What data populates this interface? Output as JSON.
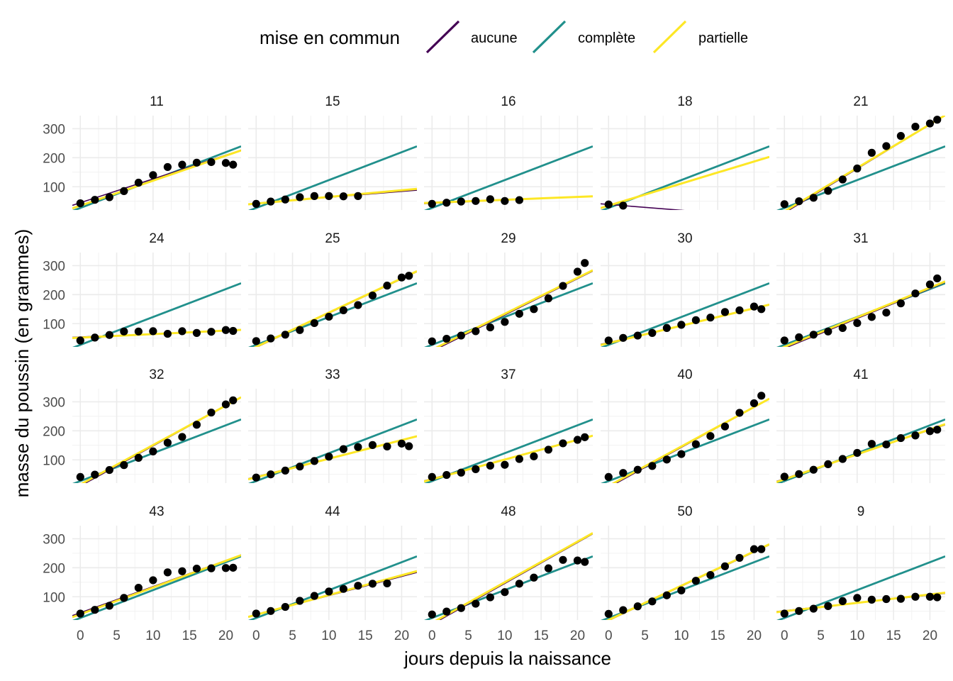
{
  "chart_data": {
    "type": "scatter",
    "facet_by": "Chick",
    "xlabel": "jours depuis la naissance",
    "ylabel": "masse du poussin (en grammes)",
    "xlim": [
      -1.1,
      22.1
    ],
    "ylim": [
      20,
      345
    ],
    "xticks": [
      0,
      5,
      10,
      15,
      20
    ],
    "yticks": [
      100,
      200,
      300
    ],
    "grid": true,
    "legend": {
      "title": "mise en commun",
      "position": "top",
      "items": [
        {
          "key": "aucune",
          "label": "aucune",
          "color": "#440154"
        },
        {
          "key": "complete",
          "label": "complète",
          "color": "#21908C"
        },
        {
          "key": "partielle",
          "label": "partielle",
          "color": "#FDE725"
        }
      ]
    },
    "point_color": "#000000",
    "panels": [
      {
        "label": "11",
        "x": [
          0,
          2,
          4,
          6,
          8,
          10,
          12,
          14,
          16,
          18,
          20,
          21
        ],
        "y": [
          43,
          55,
          64,
          85,
          114,
          140,
          168,
          176,
          183,
          185,
          182,
          176
        ],
        "fits": {
          "aucune": [
            45,
            8.2
          ],
          "complete": [
            27,
            9.6
          ],
          "partielle": [
            35,
            8.6
          ]
        }
      },
      {
        "label": "15",
        "x": [
          0,
          2,
          4,
          6,
          8,
          10,
          12,
          14
        ],
        "y": [
          41,
          49,
          56,
          64,
          68,
          68,
          67,
          68
        ],
        "fits": {
          "aucune": [
            43,
            2.05
          ],
          "complete": [
            27,
            9.6
          ],
          "partielle": [
            42,
            2.3
          ]
        }
      },
      {
        "label": "16",
        "x": [
          0,
          2,
          4,
          6,
          8,
          10,
          12
        ],
        "y": [
          41,
          45,
          49,
          51,
          57,
          51,
          54
        ],
        "fits": {
          "aucune": [
            43,
            1.1
          ],
          "complete": [
            27,
            9.6
          ],
          "partielle": [
            45,
            1.0
          ]
        }
      },
      {
        "label": "18",
        "x": [
          0,
          2
        ],
        "y": [
          39,
          35
        ],
        "fits": {
          "aucune": [
            39,
            -2.0
          ],
          "complete": [
            27,
            9.6
          ],
          "partielle": [
            35,
            7.6
          ]
        }
      },
      {
        "label": "21",
        "x": [
          0,
          2,
          4,
          6,
          8,
          10,
          12,
          14,
          16,
          18,
          20,
          21
        ],
        "y": [
          40,
          50,
          62,
          86,
          125,
          163,
          217,
          240,
          275,
          307,
          318,
          331
        ],
        "fits": {
          "aucune": [
            10,
            15.2
          ],
          "complete": [
            27,
            9.6
          ],
          "partielle": [
            15,
            15.0
          ]
        }
      },
      {
        "label": "24",
        "x": [
          0,
          2,
          4,
          6,
          8,
          10,
          12,
          14,
          16,
          18,
          20,
          21
        ],
        "y": [
          42,
          52,
          61,
          73,
          73,
          74,
          65,
          74,
          68,
          72,
          78,
          75
        ],
        "fits": {
          "aucune": [
            54,
            1.05
          ],
          "complete": [
            27,
            9.6
          ],
          "partielle": [
            52,
            1.2
          ]
        }
      },
      {
        "label": "25",
        "x": [
          0,
          2,
          4,
          6,
          8,
          10,
          12,
          14,
          16,
          18,
          20,
          21
        ],
        "y": [
          40,
          49,
          62,
          78,
          102,
          124,
          146,
          164,
          197,
          231,
          259,
          265
        ],
        "fits": {
          "aucune": [
            18,
            11.8
          ],
          "complete": [
            27,
            9.6
          ],
          "partielle": [
            20,
            11.8
          ]
        }
      },
      {
        "label": "29",
        "x": [
          0,
          2,
          4,
          6,
          8,
          10,
          12,
          14,
          16,
          18,
          20,
          21
        ],
        "y": [
          39,
          48,
          59,
          74,
          87,
          106,
          134,
          150,
          187,
          230,
          279,
          309
        ],
        "fits": {
          "aucune": [
            5,
            12.5
          ],
          "complete": [
            27,
            9.6
          ],
          "partielle": [
            10,
            12.4
          ]
        }
      },
      {
        "label": "30",
        "x": [
          0,
          2,
          4,
          6,
          8,
          10,
          12,
          14,
          16,
          18,
          20,
          21
        ],
        "y": [
          42,
          51,
          59,
          68,
          85,
          96,
          112,
          121,
          140,
          146,
          159,
          150
        ],
        "fits": {
          "aucune": [
            35,
            5.85
          ],
          "complete": [
            27,
            9.6
          ],
          "partielle": [
            33,
            6.0
          ]
        }
      },
      {
        "label": "31",
        "x": [
          0,
          2,
          4,
          6,
          8,
          10,
          12,
          14,
          16,
          18,
          20,
          21
        ],
        "y": [
          42,
          53,
          62,
          73,
          85,
          102,
          123,
          138,
          170,
          204,
          235,
          256
        ],
        "fits": {
          "aucune": [
            15,
            10.3
          ],
          "complete": [
            27,
            9.6
          ],
          "partielle": [
            20,
            10.2
          ]
        }
      },
      {
        "label": "32",
        "x": [
          0,
          2,
          4,
          6,
          8,
          10,
          12,
          14,
          16,
          18,
          20,
          21
        ],
        "y": [
          41,
          49,
          65,
          82,
          107,
          129,
          159,
          179,
          221,
          263,
          291,
          305
        ],
        "fits": {
          "aucune": [
            10,
            13.8
          ],
          "complete": [
            27,
            9.6
          ],
          "partielle": [
            15,
            13.6
          ]
        }
      },
      {
        "label": "33",
        "x": [
          0,
          2,
          4,
          6,
          8,
          10,
          12,
          14,
          16,
          18,
          20,
          21
        ],
        "y": [
          39,
          50,
          63,
          77,
          96,
          111,
          137,
          144,
          151,
          146,
          156,
          147
        ],
        "fits": {
          "aucune": [
            42,
            6.3
          ],
          "complete": [
            27,
            9.6
          ],
          "partielle": [
            40,
            6.4
          ]
        }
      },
      {
        "label": "37",
        "x": [
          0,
          2,
          4,
          6,
          8,
          10,
          12,
          14,
          16,
          18,
          20,
          21
        ],
        "y": [
          41,
          48,
          56,
          68,
          80,
          83,
          103,
          112,
          135,
          157,
          169,
          178
        ],
        "fits": {
          "aucune": [
            35,
            6.7
          ],
          "complete": [
            27,
            9.6
          ],
          "partielle": [
            33,
            6.8
          ]
        }
      },
      {
        "label": "40",
        "x": [
          0,
          2,
          4,
          6,
          8,
          10,
          12,
          14,
          16,
          18,
          20,
          21
        ],
        "y": [
          41,
          55,
          66,
          79,
          101,
          120,
          154,
          182,
          215,
          262,
          295,
          321
        ],
        "fits": {
          "aucune": [
            5,
            13.8
          ],
          "complete": [
            27,
            9.6
          ],
          "partielle": [
            10,
            13.6
          ]
        }
      },
      {
        "label": "41",
        "x": [
          0,
          2,
          4,
          6,
          8,
          10,
          12,
          14,
          16,
          18,
          20,
          21
        ],
        "y": [
          42,
          51,
          66,
          85,
          103,
          124,
          155,
          153,
          175,
          184,
          199,
          204
        ],
        "fits": {
          "aucune": [
            35,
            8.4
          ],
          "complete": [
            27,
            9.6
          ],
          "partielle": [
            33,
            8.6
          ]
        }
      },
      {
        "label": "43",
        "x": [
          0,
          2,
          4,
          6,
          8,
          10,
          12,
          14,
          16,
          18,
          20,
          21
        ],
        "y": [
          42,
          55,
          69,
          96,
          131,
          157,
          184,
          188,
          197,
          198,
          199,
          200
        ],
        "fits": {
          "aucune": [
            45,
            9.0
          ],
          "complete": [
            27,
            9.6
          ],
          "partielle": [
            40,
            9.2
          ]
        }
      },
      {
        "label": "44",
        "x": [
          0,
          2,
          4,
          6,
          8,
          10,
          12,
          14,
          16,
          18
        ],
        "y": [
          42,
          51,
          65,
          86,
          103,
          118,
          127,
          138,
          145,
          146
        ],
        "fits": {
          "aucune": [
            38,
            6.6
          ],
          "complete": [
            27,
            9.6
          ],
          "partielle": [
            38,
            6.8
          ]
        }
      },
      {
        "label": "48",
        "x": [
          0,
          2,
          4,
          6,
          8,
          10,
          12,
          14,
          16,
          18,
          20,
          21
        ],
        "y": [
          39,
          49,
          61,
          76,
          98,
          116,
          145,
          166,
          198,
          227,
          225,
          220
        ],
        "fits": {
          "aucune": [
            5,
            14.1
          ],
          "complete": [
            27,
            9.6
          ],
          "partielle": [
            10,
            14.0
          ]
        }
      },
      {
        "label": "50",
        "x": [
          0,
          2,
          4,
          6,
          8,
          10,
          12,
          14,
          16,
          18,
          20,
          21
        ],
        "y": [
          41,
          54,
          67,
          84,
          105,
          122,
          155,
          175,
          205,
          234,
          264,
          264
        ],
        "fits": {
          "aucune": [
            18,
            11.8
          ],
          "complete": [
            27,
            9.6
          ],
          "partielle": [
            20,
            11.8
          ]
        }
      },
      {
        "label": "9",
        "x": [
          0,
          2,
          4,
          6,
          8,
          10,
          12,
          14,
          16,
          18,
          20,
          21
        ],
        "y": [
          42,
          51,
          59,
          68,
          85,
          96,
          90,
          92,
          93,
          100,
          100,
          98
        ],
        "fits": {
          "aucune": [
            52,
            2.7
          ],
          "complete": [
            27,
            9.6
          ],
          "partielle": [
            50,
            2.9
          ]
        }
      }
    ]
  }
}
